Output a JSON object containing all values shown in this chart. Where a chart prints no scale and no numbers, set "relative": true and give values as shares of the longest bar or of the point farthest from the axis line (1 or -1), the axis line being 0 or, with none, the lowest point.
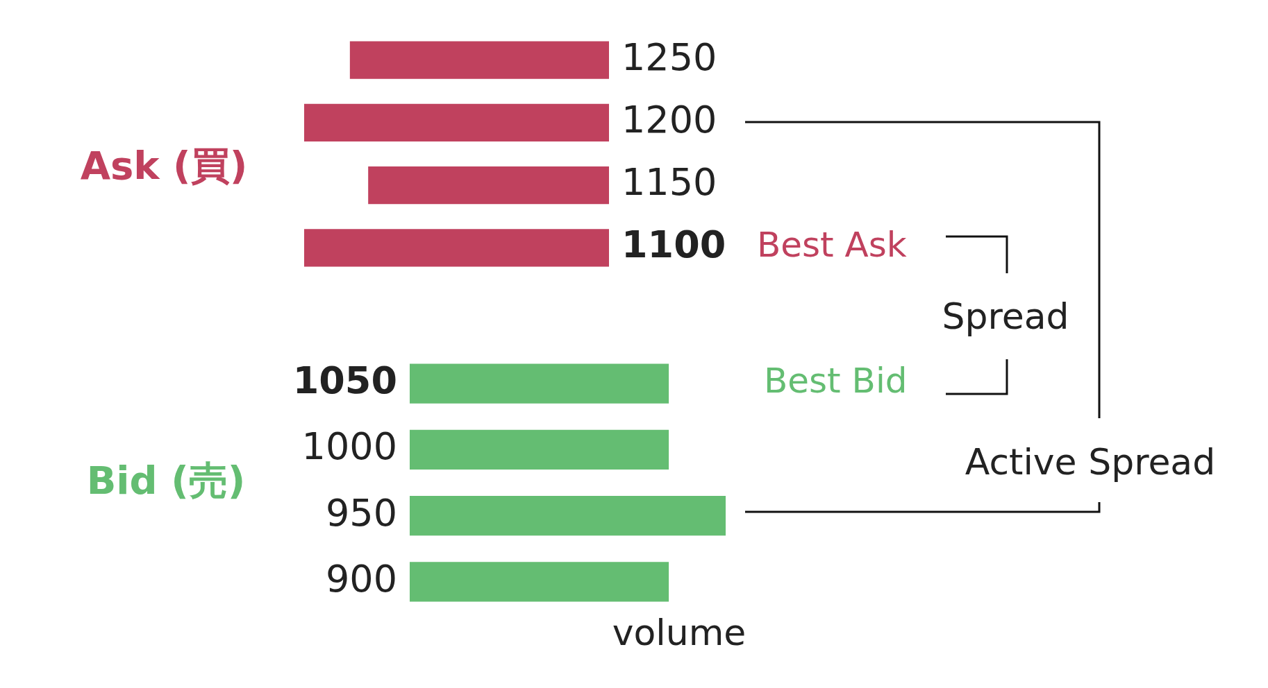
{
  "chart_data": [
    {
      "type": "bar",
      "orientation": "horizontal",
      "relative": true,
      "ylabel": "Ask (買)",
      "categories": [
        "1250",
        "1200",
        "1150",
        "1100"
      ],
      "series": [
        {
          "color": "#c0415e",
          "values": [
            0.85,
            1,
            0.79,
            1
          ]
        }
      ],
      "annotations": [
        "Best Ask"
      ],
      "grid": false,
      "legend": false,
      "tick_labels": "y"
    },
    {
      "type": "bar",
      "orientation": "horizontal",
      "relative": true,
      "ylabel": "Bid (売)",
      "xlabel": "volume",
      "categories": [
        "1050",
        "1000",
        "950",
        "900"
      ],
      "series": [
        {
          "color": "#64bd72",
          "values": [
            0.82,
            0.82,
            1,
            0.82
          ]
        }
      ],
      "annotations": [
        "Best Bid",
        "Spread",
        "Active Spread"
      ],
      "grid": false,
      "legend": false,
      "tick_labels": "y"
    }
  ]
}
